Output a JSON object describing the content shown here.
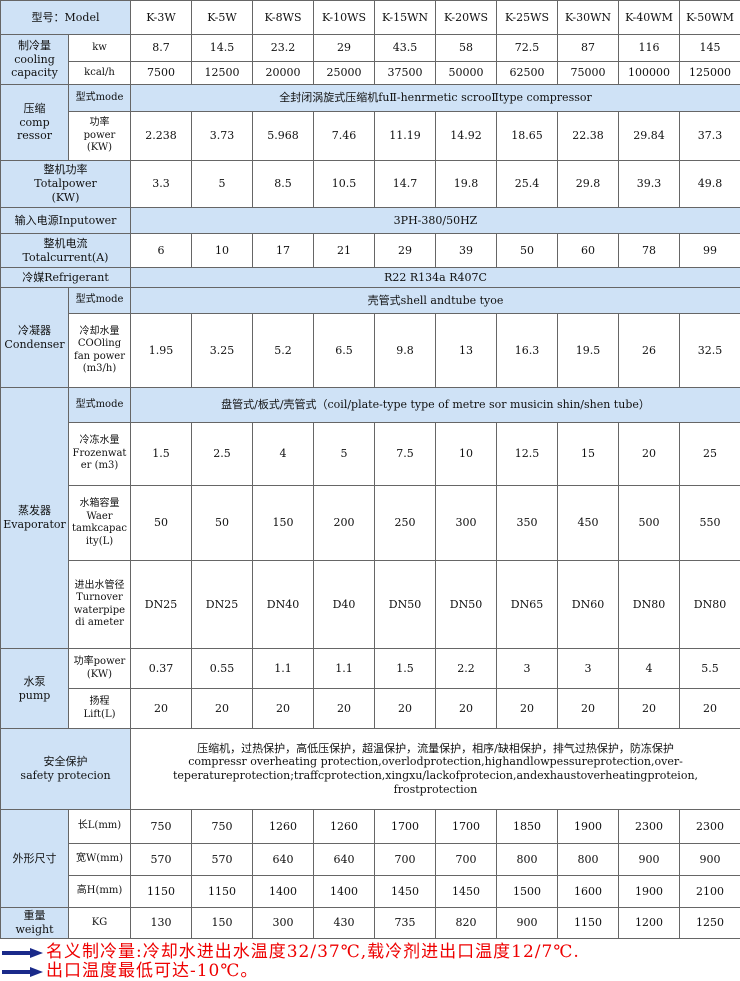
{
  "table": {
    "header": {
      "label": "型号：Model",
      "models": [
        "K-3W",
        "K-5W",
        "K-8WS",
        "K-10WS",
        "K-15WN",
        "K-20WS",
        "K-25WS",
        "K-30WN",
        "K-40WM",
        "K-50WM"
      ]
    },
    "groups": [
      {
        "label": "制冷量\ncooling\ncapacity",
        "rows": [
          {
            "label": "kw",
            "values": [
              8.7,
              14.5,
              23.2,
              29,
              43.5,
              58,
              72.5,
              87,
              116,
              145
            ]
          },
          {
            "label": "kcal/h",
            "values": [
              7500,
              12500,
              20000,
              25000,
              37500,
              50000,
              62500,
              75000,
              100000,
              125000
            ]
          }
        ]
      },
      {
        "label": "压缩\ncomp\nressor",
        "rows": [
          {
            "label": "型式mode",
            "span": "全封闭涡旋式压缩机fuⅡ-henrmetic scrooⅡtype compressor"
          },
          {
            "label": "功率\npower\n(KW)",
            "values": [
              2.238,
              3.73,
              5.968,
              7.46,
              11.19,
              14.92,
              18.65,
              22.38,
              29.84,
              37.3
            ]
          }
        ]
      },
      {
        "label": "整机功率\nTotalpower\n(KW)",
        "rows": [
          {
            "values": [
              3.3,
              5,
              8.5,
              10.5,
              14.7,
              19.8,
              25.4,
              29.8,
              39.3,
              49.8
            ]
          }
        ]
      },
      {
        "label": "输入电源Inputower",
        "rows": [
          {
            "span": "3PH-380/50HZ"
          }
        ]
      },
      {
        "label": "整机电流\nTotalcurrent(A)",
        "rows": [
          {
            "values": [
              6,
              10,
              17,
              21,
              29,
              39,
              50,
              60,
              78,
              99
            ]
          }
        ]
      },
      {
        "label": "冷媒Refrigerant",
        "rows": [
          {
            "span": "R22 R134a R407C"
          }
        ]
      },
      {
        "label": "冷凝器\nCondenser",
        "rows": [
          {
            "label": "型式mode",
            "span": "壳管式shell andtube tyoe"
          },
          {
            "label": "冷却水量\nCOOling\nfan power\n(m3/h)",
            "values": [
              1.95,
              3.25,
              5.2,
              6.5,
              9.8,
              13,
              16.3,
              19.5,
              26,
              32.5
            ]
          }
        ]
      },
      {
        "label": "蒸发器\nEvaporator",
        "rows": [
          {
            "label": "型式mode",
            "span": "盘管式/板式/壳管式（coil/plate-type type of metre sor musicin shin/shen tube）"
          },
          {
            "label": "冷冻水量\nFrozenwat\ner (m3)",
            "values": [
              1.5,
              2.5,
              4,
              5,
              7.5,
              10,
              12.5,
              15,
              20,
              25
            ]
          },
          {
            "label": "水箱容量\nWaer\ntamkcapac\nity(L)",
            "values": [
              50,
              50,
              150,
              200,
              250,
              300,
              350,
              450,
              500,
              550
            ]
          },
          {
            "label": "进出水管径\nTurnover\nwaterpipe\ndi ameter",
            "values": [
              "DN25",
              "DN25",
              "DN40",
              "D40",
              "DN50",
              "DN50",
              "DN65",
              "DN60",
              "DN80",
              "DN80"
            ]
          }
        ]
      },
      {
        "label": "水泵\npump",
        "rows": [
          {
            "label": "功率power\n(KW)",
            "values": [
              0.37,
              0.55,
              1.1,
              1.1,
              1.5,
              2.2,
              3,
              3,
              4,
              5.5
            ]
          },
          {
            "label": "扬程\nLift(L)",
            "values": [
              20,
              20,
              20,
              20,
              20,
              20,
              20,
              20,
              20,
              20
            ]
          }
        ]
      },
      {
        "label": "安全保护\nsafety protecion",
        "rows": [
          {
            "span": "压缩机，过热保护，高低压保护，超温保护，流量保护，相序/缺相保护，排气过热保护，防冻保护\ncompressr overheating protection,overlodprotection,highandlowpessureprotection,over-teperatureprotection;traffcprotection,xingxu/lackofprotecion,andexhaustoverheatingproteion,    frostprotection"
          }
        ]
      },
      {
        "label": "外形尺寸",
        "rows": [
          {
            "label": "长L(mm)",
            "values": [
              750,
              750,
              1260,
              1260,
              1700,
              1700,
              1850,
              1900,
              2300,
              2300
            ]
          },
          {
            "label": "宽W(mm)",
            "values": [
              570,
              570,
              640,
              640,
              700,
              700,
              800,
              800,
              900,
              900
            ]
          },
          {
            "label": "高H(mm)",
            "values": [
              1150,
              1150,
              1400,
              1400,
              1450,
              1450,
              1500,
              1600,
              1900,
              2100
            ]
          }
        ]
      },
      {
        "label": "重量\nweight",
        "rows": [
          {
            "label": "KG",
            "values": [
              130,
              150,
              300,
              430,
              735,
              820,
              900,
              1150,
              1200,
              1250
            ]
          }
        ]
      }
    ]
  },
  "notes": [
    "名义制冷量:冷却水进出水温度32/37℃,载冷剂进出口温度12/7℃.",
    "出口温度最低可达-10℃。"
  ]
}
